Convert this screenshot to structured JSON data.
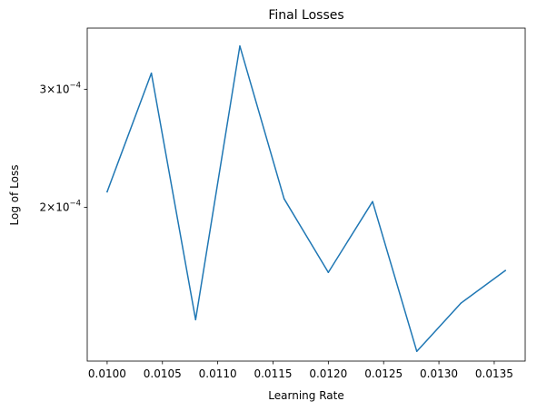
{
  "chart_data": {
    "type": "line",
    "title": "Final Losses",
    "xlabel": "Learning Rate",
    "ylabel": "Log of Loss",
    "y_scale": "log",
    "grid": false,
    "legend": "none",
    "xlim": [
      0.00982,
      0.01378
    ],
    "ylim": [
      0.000118,
      0.00037
    ],
    "x_ticks": [
      {
        "value": 0.01,
        "label": "0.0100"
      },
      {
        "value": 0.0105,
        "label": "0.0105"
      },
      {
        "value": 0.011,
        "label": "0.0110"
      },
      {
        "value": 0.0115,
        "label": "0.0115"
      },
      {
        "value": 0.012,
        "label": "0.0120"
      },
      {
        "value": 0.0125,
        "label": "0.0125"
      },
      {
        "value": 0.013,
        "label": "0.0130"
      },
      {
        "value": 0.0135,
        "label": "0.0135"
      }
    ],
    "y_ticks": [
      {
        "value": 0.0002,
        "mantissa": "2",
        "base": "10",
        "exponent": "−4"
      },
      {
        "value": 0.0003,
        "mantissa": "3",
        "base": "10",
        "exponent": "−4"
      }
    ],
    "series": [
      {
        "color": "#1f77b4",
        "x": [
          0.01,
          0.0104,
          0.0108,
          0.0112,
          0.0116,
          0.012,
          0.0124,
          0.0128,
          0.0132,
          0.0136
        ],
        "y": [
          0.000211,
          0.000317,
          0.000136,
          0.000348,
          0.000206,
          0.00016,
          0.000204,
          0.000122,
          0.000144,
          0.000161
        ]
      }
    ]
  }
}
